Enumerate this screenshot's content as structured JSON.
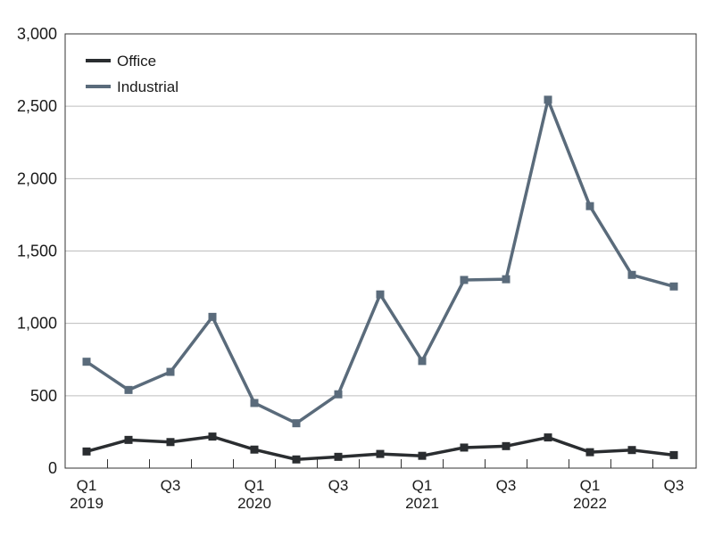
{
  "chart_data": {
    "type": "line",
    "categories": [
      "Q1 2019",
      "Q2 2019",
      "Q3 2019",
      "Q4 2019",
      "Q1 2020",
      "Q2 2020",
      "Q3 2020",
      "Q4 2020",
      "Q1 2021",
      "Q2 2021",
      "Q3 2021",
      "Q4 2021",
      "Q1 2022",
      "Q2 2022",
      "Q3 2022"
    ],
    "x_tick_labels": [
      {
        "index": 0,
        "line1": "Q1",
        "line2": "2019"
      },
      {
        "index": 2,
        "line1": "Q3",
        "line2": ""
      },
      {
        "index": 4,
        "line1": "Q1",
        "line2": "2020"
      },
      {
        "index": 6,
        "line1": "Q3",
        "line2": ""
      },
      {
        "index": 8,
        "line1": "Q1",
        "line2": "2021"
      },
      {
        "index": 10,
        "line1": "Q3",
        "line2": ""
      },
      {
        "index": 12,
        "line1": "Q1",
        "line2": "2022"
      },
      {
        "index": 14,
        "line1": "Q3",
        "line2": ""
      }
    ],
    "series": [
      {
        "name": "Office",
        "color": "#2a2d30",
        "values": [
          115,
          195,
          180,
          218,
          128,
          60,
          78,
          98,
          85,
          142,
          152,
          212,
          110,
          125,
          90
        ]
      },
      {
        "name": "Industrial",
        "color": "#5a6b7b",
        "values": [
          735,
          540,
          665,
          1045,
          450,
          310,
          510,
          1200,
          740,
          1300,
          1305,
          2545,
          1810,
          1335,
          1255
        ]
      }
    ],
    "ylim": [
      0,
      3000
    ],
    "yticks": [
      0,
      500,
      1000,
      1500,
      2000,
      2500,
      3000
    ],
    "ytick_labels": [
      "0",
      "500",
      "1,000",
      "1,500",
      "2,000",
      "2,500",
      "3,000"
    ],
    "grid": "horizontal",
    "legend_position": "top-left",
    "title": "",
    "xlabel": "",
    "ylabel": ""
  }
}
